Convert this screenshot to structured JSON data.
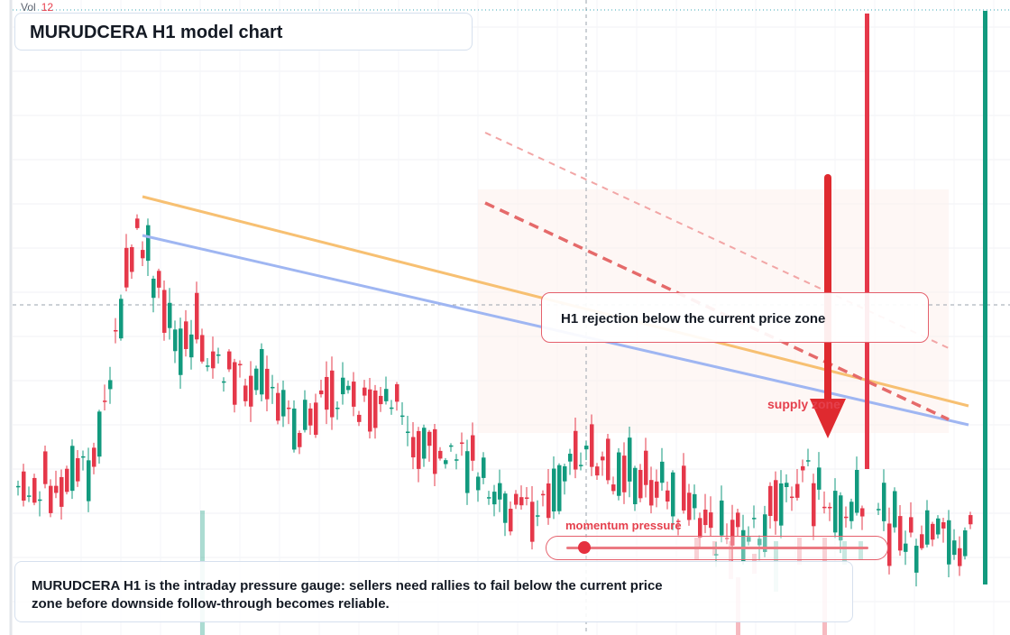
{
  "volume": {
    "label": "Vol",
    "value": "12"
  },
  "title": "MURUDCERA H1 model chart",
  "callout": {
    "text": "H1 rejection below the current price zone"
  },
  "labels": {
    "supply_zone": "supply zone",
    "momentum": "momentum pressure"
  },
  "gauge": {
    "level": 0.05
  },
  "description": "MURUDCERA H1 is the intraday pressure gauge: sellers need rallies to fail below the current price zone before downside follow-through becomes reliable.",
  "colors": {
    "bull": "#129a7e",
    "bear": "#e5384a",
    "trend_orange": "#f7c072",
    "trend_blue": "#9fb6f2",
    "arrow": "#df2a2f"
  },
  "icons": {
    "down_arrow": "down-arrow-icon"
  }
}
